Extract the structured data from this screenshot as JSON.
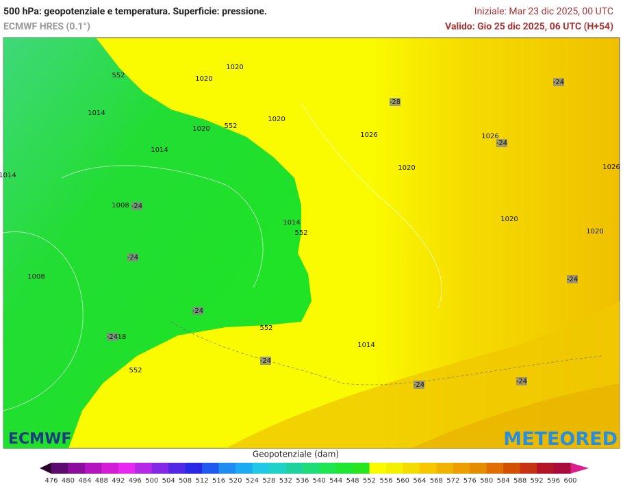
{
  "header": {
    "title": "500 hPa: geopotenziale e temperatura. Superficie: pressione.",
    "model": "ECMWF HRES (0.1°)",
    "init": "Iniziale: Mar 23 dic 2025, 00 UTC",
    "valid": "Valido: Gio 25 dic 2025, 06 UTC (H+54)"
  },
  "map": {
    "labels": [
      "552",
      "1020",
      "1020",
      "1014",
      "552",
      "1020",
      "1020",
      "1014",
      "-28",
      "1026",
      "1026",
      "-24",
      "-24",
      "1020",
      "1026",
      "1014",
      "1008",
      "-24",
      "1014",
      "552",
      "1020",
      "1020",
      "-24",
      "1008",
      "-24",
      "-24",
      "-24",
      "18",
      "552",
      "1014",
      "-24",
      "552",
      "-24",
      "-24"
    ]
  },
  "logos": {
    "left": "ECMWF",
    "right": "METEORED"
  },
  "colorbar": {
    "title": "Geopotenziale (dam)",
    "ticks": [
      476,
      480,
      484,
      488,
      492,
      496,
      500,
      504,
      508,
      512,
      516,
      520,
      524,
      528,
      532,
      536,
      540,
      544,
      548,
      552,
      556,
      560,
      564,
      568,
      572,
      576,
      580,
      584,
      588,
      592,
      596,
      600
    ],
    "colors": [
      "#5b0c6e",
      "#8c0c9c",
      "#b414be",
      "#d21ed6",
      "#e628f0",
      "#b428e6",
      "#8228e6",
      "#5028e6",
      "#2828e6",
      "#1e5af0",
      "#1e8cf0",
      "#1eaaf0",
      "#1ec8e6",
      "#1ed2c8",
      "#1ed2a0",
      "#1edc78",
      "#1ee650",
      "#1ee632",
      "#28e61e",
      "#fafa00",
      "#f5f000",
      "#f5dc00",
      "#f5c800",
      "#f0b400",
      "#eba000",
      "#e68c00",
      "#e16e00",
      "#d25000",
      "#c83214",
      "#b41428",
      "#aa0a3c"
    ],
    "under_color": "#2a0030",
    "over_color": "#dc1e8c"
  }
}
